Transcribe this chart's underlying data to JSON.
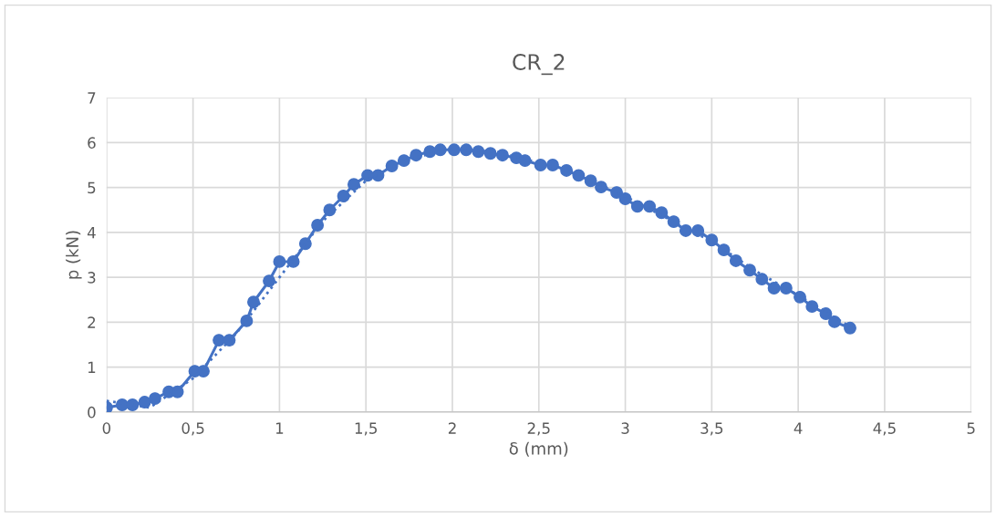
{
  "chart_data": {
    "type": "line",
    "title": "CR_2",
    "xlabel": "δ (mm)",
    "ylabel": "p (kN)",
    "xlim": [
      0,
      5
    ],
    "xticks": [
      0,
      {
        "value": 0.5,
        "label": "0,5"
      },
      1,
      {
        "value": 1.5,
        "label": "1,5"
      },
      2,
      {
        "value": 2.5,
        "label": "2,5"
      },
      3,
      {
        "value": 3.5,
        "label": "3,5"
      },
      4,
      {
        "value": 4.5,
        "label": "4,5"
      },
      5
    ],
    "ylim": [
      0,
      7
    ],
    "yticks": [
      0,
      1,
      2,
      3,
      4,
      5,
      6,
      7
    ],
    "grid": true,
    "legend": false,
    "series": [
      {
        "color": "#4472c4",
        "marker": "circle",
        "line_style": "solid",
        "x": [
          0,
          0.09,
          0.15,
          0.22,
          0.28,
          0.36,
          0.41,
          0.51,
          0.56,
          0.65,
          0.71,
          0.81,
          0.85,
          0.94,
          1.0,
          1.08,
          1.15,
          1.22,
          1.29,
          1.37,
          1.43,
          1.51,
          1.57,
          1.65,
          1.72,
          1.79,
          1.87,
          1.93,
          2.01,
          2.08,
          2.15,
          2.22,
          2.29,
          2.37,
          2.42,
          2.51,
          2.58,
          2.66,
          2.73,
          2.8,
          2.86,
          2.95,
          3.0,
          3.07,
          3.14,
          3.21,
          3.28,
          3.35,
          3.42,
          3.5,
          3.57,
          3.64,
          3.72,
          3.79,
          3.86,
          3.93,
          4.01,
          4.08,
          4.16,
          4.21,
          4.3
        ],
        "values": [
          0.1,
          0.16,
          0.16,
          0.22,
          0.3,
          0.45,
          0.45,
          0.91,
          0.91,
          1.6,
          1.6,
          2.03,
          2.45,
          2.92,
          3.35,
          3.35,
          3.75,
          4.16,
          4.5,
          4.81,
          5.07,
          5.27,
          5.27,
          5.48,
          5.6,
          5.72,
          5.8,
          5.84,
          5.84,
          5.84,
          5.8,
          5.76,
          5.72,
          5.66,
          5.6,
          5.5,
          5.5,
          5.38,
          5.27,
          5.15,
          5.01,
          4.89,
          4.75,
          4.58,
          4.58,
          4.44,
          4.24,
          4.04,
          4.04,
          3.83,
          3.61,
          3.37,
          3.16,
          2.96,
          2.76,
          2.76,
          2.56,
          2.35,
          2.19,
          2.01,
          1.87
        ]
      },
      {
        "color": "#4472c4",
        "marker": "none",
        "line_style": "dotted",
        "x": [
          0,
          0.25,
          0.5,
          0.75,
          1.0,
          1.25,
          1.5,
          1.75,
          2.0,
          2.25,
          2.5,
          2.75,
          3.0,
          3.25,
          3.5,
          3.75,
          4.0,
          4.3
        ],
        "values": [
          0.25,
          0.1,
          0.75,
          1.75,
          3.0,
          4.25,
          5.15,
          5.65,
          5.85,
          5.8,
          5.55,
          5.25,
          4.8,
          4.3,
          3.8,
          3.15,
          2.6,
          1.9
        ]
      }
    ]
  }
}
